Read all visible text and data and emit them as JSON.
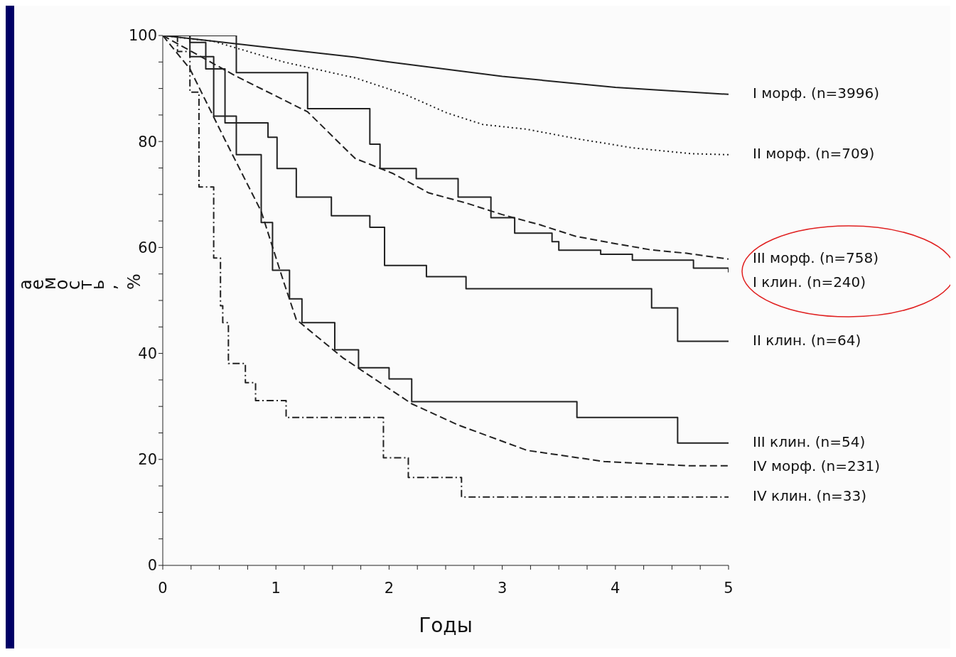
{
  "chart_data": {
    "type": "step",
    "xlabel": "Годы",
    "ylabel": "аемость, %",
    "xlim": [
      0,
      5
    ],
    "ylim": [
      0,
      100
    ],
    "xticks": [
      0,
      {
        "value": 0.25,
        "label": null
      },
      {
        "value": 0.5,
        "label": null
      },
      {
        "value": 0.75,
        "label": null
      },
      1,
      {
        "value": 1.25,
        "label": null
      },
      {
        "value": 1.5,
        "label": null
      },
      {
        "value": 1.75,
        "label": null
      },
      2,
      {
        "value": 2.25,
        "label": null
      },
      {
        "value": 2.5,
        "label": null
      },
      {
        "value": 2.75,
        "label": null
      },
      3,
      {
        "value": 3.25,
        "label": null
      },
      {
        "value": 3.5,
        "label": null
      },
      {
        "value": 3.75,
        "label": null
      },
      4,
      {
        "value": 4.25,
        "label": null
      },
      {
        "value": 4.5,
        "label": null
      },
      {
        "value": 4.75,
        "label": null
      },
      5
    ],
    "yticks": [
      0,
      {
        "value": 5,
        "label": null
      },
      {
        "value": 10,
        "label": null
      },
      {
        "value": 15,
        "label": null
      },
      20,
      {
        "value": 25,
        "label": null
      },
      {
        "value": 30,
        "label": null
      },
      {
        "value": 35,
        "label": null
      },
      40,
      {
        "value": 45,
        "label": null
      },
      {
        "value": 50,
        "label": null
      },
      {
        "value": 55,
        "label": null
      },
      60,
      {
        "value": 65,
        "label": null
      },
      {
        "value": 70,
        "label": null
      },
      {
        "value": 75,
        "label": null
      },
      80,
      {
        "value": 85,
        "label": null
      },
      {
        "value": 90,
        "label": null
      },
      {
        "value": 95,
        "label": null
      },
      100
    ],
    "grid": false,
    "legend": false,
    "marker": "none",
    "series": [
      {
        "name": "I морф. (n=3996)",
        "type": "line",
        "line_style": "solid",
        "color": "#222222",
        "x": [
          0,
          1,
          1.7,
          2,
          3,
          4,
          5
        ],
        "values": [
          100,
          97.6,
          95.9,
          95,
          92.3,
          90.2,
          88.9
        ]
      },
      {
        "name": "II морф. (n=709)",
        "type": "line",
        "line_style": "dotted",
        "color": "#222222",
        "x": [
          0,
          0.45,
          1.07,
          1.7,
          2.14,
          2.51,
          2.83,
          3.22,
          3.69,
          3.87,
          4.15,
          4.67,
          5
        ],
        "values": [
          100,
          98.9,
          95,
          92,
          88.9,
          85.4,
          83.2,
          82.3,
          80.4,
          79.8,
          78.8,
          77.7,
          77.5
        ]
      },
      {
        "name": "III морф. (n=758)",
        "type": "line",
        "line_style": "dashed",
        "color": "#222222",
        "x": [
          0,
          0.65,
          1.28,
          1.7,
          2.03,
          2.35,
          2.68,
          3,
          3.33,
          3.65,
          3.98,
          4.3,
          4.63,
          5
        ],
        "values": [
          100,
          92.3,
          85.6,
          76.8,
          74,
          70.3,
          68.4,
          66.2,
          64.3,
          62.1,
          60.8,
          59.6,
          58.9,
          57.8
        ]
      },
      {
        "name": "I клин. (n=240)",
        "type": "step",
        "line_style": "solid",
        "color": "#222222",
        "x": [
          0,
          0.65,
          1.28,
          1.83,
          1.92,
          2.24,
          2.61,
          2.9,
          3.11,
          3.44,
          3.5,
          3.87,
          4.15,
          4.69,
          5
        ],
        "values": [
          100,
          93,
          86.2,
          79.5,
          74.9,
          73,
          69.5,
          65.6,
          62.7,
          61.1,
          59.5,
          58.7,
          57.6,
          56.1,
          55.3
        ]
      },
      {
        "name": "II клин. (n=64)",
        "type": "step",
        "line_style": "solid",
        "color": "#222222",
        "x": [
          0,
          0.24,
          0.38,
          0.55,
          0.93,
          1.01,
          1.18,
          1.49,
          1.83,
          1.96,
          2.33,
          2.68,
          4.32,
          4.55,
          5
        ],
        "values": [
          100,
          98.7,
          93.7,
          83.5,
          80.8,
          74.9,
          69.5,
          66,
          63.8,
          56.6,
          54.5,
          52.2,
          48.6,
          42.3,
          42.3
        ]
      },
      {
        "name": "III клин. (n=54)",
        "type": "step",
        "line_style": "solid",
        "color": "#222222",
        "x": [
          0,
          0.24,
          0.45,
          0.65,
          0.87,
          0.97,
          1.12,
          1.23,
          1.52,
          1.73,
          2,
          2.2,
          3.66,
          4.55,
          5
        ],
        "values": [
          100,
          96,
          84.8,
          77.5,
          64.7,
          55.7,
          50.3,
          45.8,
          40.7,
          37.3,
          35.2,
          30.9,
          27.9,
          23.1,
          23.1
        ]
      },
      {
        "name": "IV морф. (n=231)",
        "type": "line",
        "line_style": "dashed",
        "color": "#222222",
        "x": [
          0,
          0.24,
          0.55,
          0.87,
          1.07,
          1.18,
          1.59,
          2.2,
          2.61,
          3.22,
          3.9,
          4.65,
          5
        ],
        "values": [
          100,
          93.7,
          80.3,
          66.8,
          53.4,
          46.4,
          39.2,
          30.5,
          26.5,
          21.7,
          19.6,
          18.8,
          18.8
        ]
      },
      {
        "name": "IV клин. (n=33)",
        "type": "step",
        "line_style": "dashdot",
        "color": "#222222",
        "x": [
          0,
          0.13,
          0.24,
          0.32,
          0.45,
          0.51,
          0.53,
          0.58,
          0.73,
          0.82,
          1.09,
          1.95,
          2.17,
          2.64,
          5
        ],
        "values": [
          100,
          97,
          89.3,
          71.4,
          58,
          49,
          45.8,
          38.1,
          34.5,
          31.1,
          27.9,
          20.3,
          16.6,
          12.9,
          13
        ]
      }
    ]
  }
}
